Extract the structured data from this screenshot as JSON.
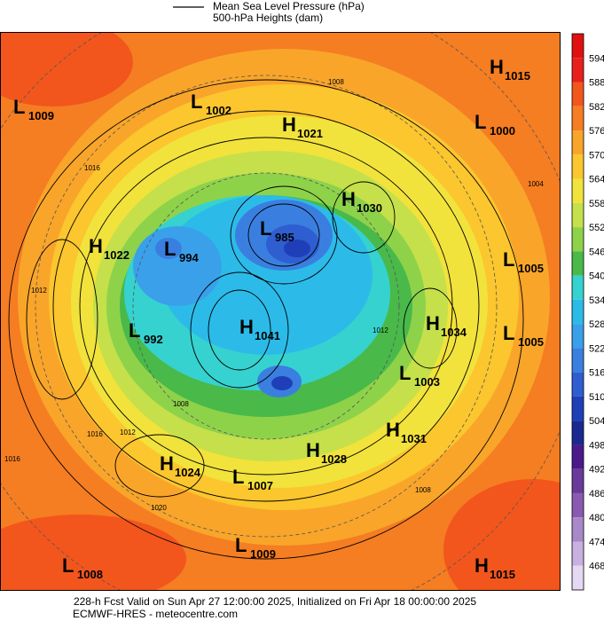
{
  "legend": {
    "items": [
      "Mean Sea Level Pressure (hPa)",
      "500-hPa Heights (dam)"
    ]
  },
  "colorbar": {
    "levels": [
      594,
      588,
      582,
      576,
      570,
      564,
      558,
      552,
      546,
      540,
      534,
      528,
      522,
      516,
      510,
      504,
      498,
      492,
      486,
      480,
      474,
      468
    ],
    "colors": [
      "#e8201c",
      "#f2561c",
      "#f57d22",
      "#f9a52a",
      "#fbc62e",
      "#f2e23c",
      "#c5e04a",
      "#8ed24a",
      "#49b94a",
      "#36d2cf",
      "#2cbbe9",
      "#3aa0ea",
      "#3a7fe0",
      "#2e5ed0",
      "#1f3fb8",
      "#19298f",
      "#4a1a8a",
      "#6a3a9a",
      "#8a5ab0",
      "#a888c8",
      "#c8b0e0",
      "#e4d8f2"
    ]
  },
  "centers": [
    {
      "letter": "L",
      "value": "1009"
    },
    {
      "letter": "L",
      "value": "1002"
    },
    {
      "letter": "H",
      "value": "1021"
    },
    {
      "letter": "L",
      "value": "1000"
    },
    {
      "letter": "H",
      "value": "1015"
    },
    {
      "letter": "H",
      "value": "1030"
    },
    {
      "letter": "L",
      "value": "985"
    },
    {
      "letter": "H",
      "value": "1022"
    },
    {
      "letter": "L",
      "value": "994"
    },
    {
      "letter": "L",
      "value": "1005"
    },
    {
      "letter": "H",
      "value": "1034"
    },
    {
      "letter": "L",
      "value": "1005"
    },
    {
      "letter": "L",
      "value": "992"
    },
    {
      "letter": "H",
      "value": "1041"
    },
    {
      "letter": "L",
      "value": "1003"
    },
    {
      "letter": "H",
      "value": "1031"
    },
    {
      "letter": "H",
      "value": "1028"
    },
    {
      "letter": "H",
      "value": "1024"
    },
    {
      "letter": "L",
      "value": "1007"
    },
    {
      "letter": "L",
      "value": "1009"
    },
    {
      "letter": "L",
      "value": "1008"
    },
    {
      "letter": "H",
      "value": "1015"
    }
  ],
  "contour_labels": [
    "1016",
    "1012",
    "1016",
    "1012",
    "1008",
    "1020",
    "1008",
    "1012",
    "1016",
    "1004",
    "1008"
  ],
  "footer": {
    "line1": "228-h Fcst Valid on Sun Apr 27 12:00:00 2025, Initialized on Fri Apr 18 00:00:00 2025",
    "line2": "ECMWF-HRES  - meteocentre.com"
  }
}
